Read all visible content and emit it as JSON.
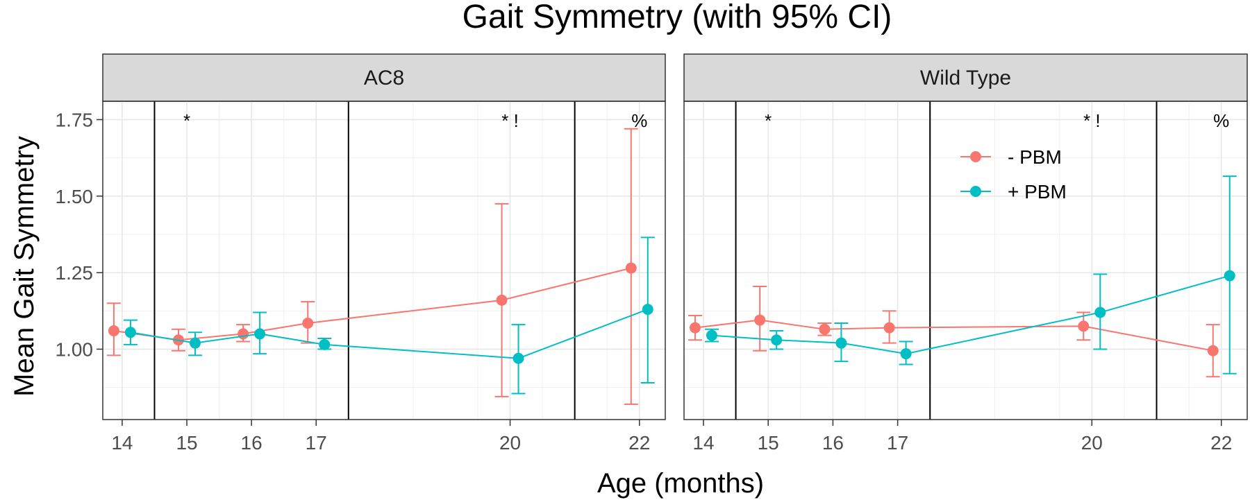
{
  "chart_data": {
    "type": "line",
    "title": "Gait Symmetry (with 95% CI)",
    "xlabel": "Age (months)",
    "ylabel": "Mean Gait Symmetry",
    "xticks": [
      14,
      15,
      16,
      17,
      20,
      22
    ],
    "yticks": [
      1.0,
      1.25,
      1.5,
      1.75
    ],
    "ytick_labels": [
      "1.00",
      "1.25",
      "1.50",
      "1.75"
    ],
    "ylim": [
      0.77,
      1.81
    ],
    "xlim": [
      13.7,
      22.4
    ],
    "vlines": [
      14.5,
      17.5,
      21.0
    ],
    "annotations": [
      {
        "x": 15,
        "text": "*"
      },
      {
        "x": 20,
        "text": "* !"
      },
      {
        "x": 22,
        "text": "%"
      }
    ],
    "colors": {
      "minus_pbm": "#F8766D",
      "plus_pbm": "#00BFC4"
    },
    "legend": {
      "position": "top-right",
      "entries": [
        "- PBM",
        "+ PBM"
      ]
    },
    "panels": [
      {
        "name": "AC8",
        "series": [
          {
            "name": "- PBM",
            "x": [
              14,
              15,
              16,
              17,
              20,
              22
            ],
            "mean": [
              1.06,
              1.03,
              1.05,
              1.085,
              1.16,
              1.265
            ],
            "lower": [
              0.98,
              0.995,
              1.025,
              1.02,
              0.845,
              0.82
            ],
            "upper": [
              1.15,
              1.065,
              1.08,
              1.155,
              1.475,
              1.72
            ]
          },
          {
            "name": "+ PBM",
            "x": [
              14,
              15,
              16,
              17,
              20,
              22
            ],
            "mean": [
              1.055,
              1.02,
              1.05,
              1.015,
              0.97,
              1.13
            ],
            "lower": [
              1.015,
              0.98,
              0.985,
              1.0,
              0.855,
              0.89
            ],
            "upper": [
              1.095,
              1.055,
              1.12,
              1.035,
              1.08,
              1.365
            ]
          }
        ]
      },
      {
        "name": "Wild Type",
        "series": [
          {
            "name": "- PBM",
            "x": [
              14,
              15,
              16,
              17,
              20,
              22
            ],
            "mean": [
              1.07,
              1.095,
              1.065,
              1.07,
              1.075,
              0.995
            ],
            "lower": [
              1.03,
              0.995,
              1.045,
              1.02,
              1.03,
              0.91
            ],
            "upper": [
              1.11,
              1.205,
              1.085,
              1.125,
              1.12,
              1.08
            ]
          },
          {
            "name": "+ PBM",
            "x": [
              14,
              15,
              16,
              17,
              20,
              22
            ],
            "mean": [
              1.045,
              1.03,
              1.02,
              0.985,
              1.12,
              1.24
            ],
            "lower": [
              1.025,
              1.0,
              0.96,
              0.95,
              1.0,
              0.92
            ],
            "upper": [
              1.065,
              1.06,
              1.085,
              1.025,
              1.245,
              1.565
            ]
          }
        ]
      }
    ]
  }
}
